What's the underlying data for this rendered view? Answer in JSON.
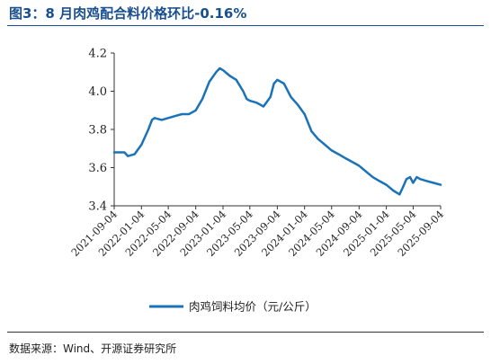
{
  "header": {
    "title": "图3：8 月肉鸡配合料价格环比-0.16%"
  },
  "footer": {
    "source": "数据来源：Wind、开源证券研究所"
  },
  "colors": {
    "series": "#1a73b8",
    "title": "#1a4f8f"
  },
  "chart_data": {
    "type": "line",
    "title": "",
    "xlabel": "",
    "ylabel": "",
    "ylim": [
      3.4,
      4.2
    ],
    "yticks": [
      "3.4",
      "3.6",
      "3.8",
      "4.0",
      "4.2"
    ],
    "xticks": [
      "2021-09-04",
      "2022-01-04",
      "2022-05-04",
      "2022-09-04",
      "2023-01-04",
      "2023-05-04",
      "2023-09-04",
      "2024-01-04",
      "2024-05-04",
      "2024-09-04",
      "2025-01-04",
      "2025-05-04",
      "2025-09-04"
    ],
    "grid": false,
    "legend": "bottom",
    "series": [
      {
        "name": "肉鸡饲料均价（元/公斤）",
        "points": [
          [
            "2021-09-04",
            3.68
          ],
          [
            "2021-10-04",
            3.68
          ],
          [
            "2021-10-20",
            3.68
          ],
          [
            "2021-11-04",
            3.66
          ],
          [
            "2021-12-04",
            3.67
          ],
          [
            "2022-01-04",
            3.72
          ],
          [
            "2022-02-04",
            3.8
          ],
          [
            "2022-02-20",
            3.85
          ],
          [
            "2022-03-04",
            3.86
          ],
          [
            "2022-04-04",
            3.85
          ],
          [
            "2022-05-04",
            3.86
          ],
          [
            "2022-06-04",
            3.87
          ],
          [
            "2022-07-04",
            3.88
          ],
          [
            "2022-08-04",
            3.88
          ],
          [
            "2022-09-04",
            3.9
          ],
          [
            "2022-10-04",
            3.96
          ],
          [
            "2022-11-04",
            4.05
          ],
          [
            "2022-12-04",
            4.1
          ],
          [
            "2022-12-20",
            4.12
          ],
          [
            "2023-01-04",
            4.11
          ],
          [
            "2023-02-04",
            4.08
          ],
          [
            "2023-03-04",
            4.06
          ],
          [
            "2023-04-04",
            4.0
          ],
          [
            "2023-04-20",
            3.96
          ],
          [
            "2023-05-04",
            3.95
          ],
          [
            "2023-06-04",
            3.94
          ],
          [
            "2023-07-04",
            3.92
          ],
          [
            "2023-08-04",
            3.97
          ],
          [
            "2023-08-20",
            4.04
          ],
          [
            "2023-09-04",
            4.06
          ],
          [
            "2023-10-04",
            4.04
          ],
          [
            "2023-11-04",
            3.97
          ],
          [
            "2023-12-04",
            3.93
          ],
          [
            "2024-01-04",
            3.88
          ],
          [
            "2024-02-04",
            3.79
          ],
          [
            "2024-03-04",
            3.75
          ],
          [
            "2024-04-04",
            3.72
          ],
          [
            "2024-05-04",
            3.69
          ],
          [
            "2024-06-04",
            3.67
          ],
          [
            "2024-07-04",
            3.65
          ],
          [
            "2024-08-04",
            3.63
          ],
          [
            "2024-09-04",
            3.61
          ],
          [
            "2024-10-04",
            3.58
          ],
          [
            "2024-11-04",
            3.55
          ],
          [
            "2024-12-04",
            3.53
          ],
          [
            "2025-01-04",
            3.51
          ],
          [
            "2025-02-04",
            3.48
          ],
          [
            "2025-03-04",
            3.46
          ],
          [
            "2025-03-20",
            3.5
          ],
          [
            "2025-04-04",
            3.54
          ],
          [
            "2025-04-20",
            3.55
          ],
          [
            "2025-05-04",
            3.52
          ],
          [
            "2025-05-20",
            3.55
          ],
          [
            "2025-06-04",
            3.54
          ],
          [
            "2025-07-04",
            3.53
          ],
          [
            "2025-08-04",
            3.52
          ],
          [
            "2025-09-04",
            3.51
          ]
        ]
      }
    ]
  }
}
